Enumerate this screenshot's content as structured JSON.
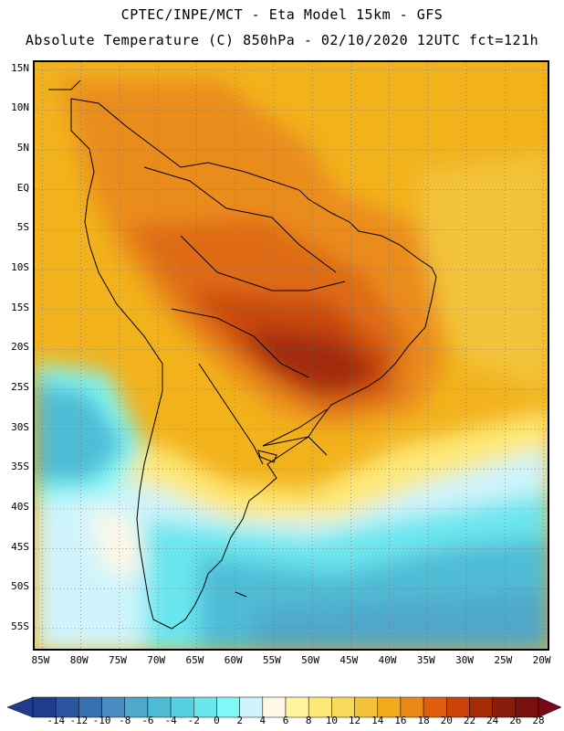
{
  "title": {
    "line1": "CPTEC/INPE/MCT -  Eta Model 15km - GFS",
    "line2": "Absolute Temperature (C) 850hPa - 02/10/2020 12UTC fct=121h"
  },
  "map": {
    "lat_labels": [
      "15N",
      "10N",
      "5N",
      "EQ",
      "5S",
      "10S",
      "15S",
      "20S",
      "25S",
      "30S",
      "35S",
      "40S",
      "45S",
      "50S",
      "55S"
    ],
    "lon_labels": [
      "85W",
      "80W",
      "75W",
      "70W",
      "65W",
      "60W",
      "55W",
      "50W",
      "45W",
      "40W",
      "35W",
      "30W",
      "25W",
      "20W"
    ],
    "extent": {
      "lon_min": -86,
      "lon_max": -19,
      "lat_min": -58,
      "lat_max": 16
    }
  },
  "colorbar": {
    "levels": [
      "-14",
      "-12",
      "-10",
      "-8",
      "-6",
      "-4",
      "-2",
      "0",
      "2",
      "4",
      "6",
      "8",
      "10",
      "12",
      "14",
      "16",
      "18",
      "20",
      "22",
      "24",
      "26",
      "28"
    ],
    "colors": [
      "#7a0818",
      "#1f3c8c",
      "#2b559e",
      "#3670b0",
      "#4a8bc2",
      "#4fa7c9",
      "#4fbcd6",
      "#57d0e3",
      "#6ae6ee",
      "#7ff8f8",
      "#cff4fb",
      "#fff8e6",
      "#fff59e",
      "#fde877",
      "#f9d95a",
      "#f4c23a",
      "#f0ab1a",
      "#ed8a17",
      "#e05f0f",
      "#cc430a",
      "#a52a06",
      "#8a1c0c",
      "#7a1010",
      "#820a20"
    ],
    "under_color": "#1f3c8c",
    "over_color": "#7a0818"
  }
}
